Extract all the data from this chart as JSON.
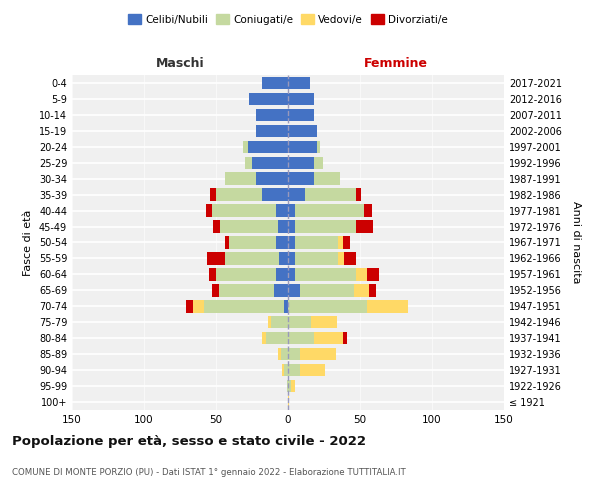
{
  "age_groups": [
    "100+",
    "95-99",
    "90-94",
    "85-89",
    "80-84",
    "75-79",
    "70-74",
    "65-69",
    "60-64",
    "55-59",
    "50-54",
    "45-49",
    "40-44",
    "35-39",
    "30-34",
    "25-29",
    "20-24",
    "15-19",
    "10-14",
    "5-9",
    "0-4"
  ],
  "birth_years": [
    "≤ 1921",
    "1922-1926",
    "1927-1931",
    "1932-1936",
    "1937-1941",
    "1942-1946",
    "1947-1951",
    "1952-1956",
    "1957-1961",
    "1962-1966",
    "1967-1971",
    "1972-1976",
    "1977-1981",
    "1982-1986",
    "1987-1991",
    "1992-1996",
    "1997-2001",
    "2002-2006",
    "2007-2011",
    "2012-2016",
    "2017-2021"
  ],
  "male": {
    "celibi": [
      0,
      0,
      0,
      0,
      0,
      0,
      3,
      10,
      8,
      6,
      8,
      7,
      8,
      18,
      22,
      25,
      28,
      22,
      22,
      27,
      18
    ],
    "coniugati": [
      0,
      1,
      3,
      5,
      15,
      12,
      55,
      38,
      42,
      38,
      33,
      40,
      45,
      32,
      22,
      5,
      3,
      0,
      0,
      0,
      0
    ],
    "vedovi": [
      0,
      0,
      1,
      2,
      3,
      2,
      8,
      0,
      0,
      0,
      0,
      0,
      0,
      0,
      0,
      0,
      0,
      0,
      0,
      0,
      0
    ],
    "divorziati": [
      0,
      0,
      0,
      0,
      0,
      0,
      5,
      5,
      5,
      12,
      3,
      5,
      4,
      4,
      0,
      0,
      0,
      0,
      0,
      0,
      0
    ]
  },
  "female": {
    "nubili": [
      0,
      0,
      0,
      0,
      0,
      0,
      0,
      8,
      5,
      5,
      5,
      5,
      5,
      12,
      18,
      18,
      20,
      20,
      18,
      18,
      15
    ],
    "coniugate": [
      0,
      2,
      8,
      8,
      18,
      16,
      55,
      38,
      42,
      30,
      30,
      42,
      48,
      35,
      18,
      6,
      2,
      0,
      0,
      0,
      0
    ],
    "vedove": [
      1,
      3,
      18,
      25,
      20,
      18,
      28,
      10,
      8,
      4,
      3,
      0,
      0,
      0,
      0,
      0,
      0,
      0,
      0,
      0,
      0
    ],
    "divorziate": [
      0,
      0,
      0,
      0,
      3,
      0,
      0,
      5,
      8,
      8,
      5,
      12,
      5,
      4,
      0,
      0,
      0,
      0,
      0,
      0,
      0
    ]
  },
  "colors": {
    "celibi": "#4472C4",
    "coniugati": "#c5d9a0",
    "vedovi": "#FFD966",
    "divorziati": "#CC0000"
  },
  "xlim": 150,
  "title": "Popolazione per età, sesso e stato civile - 2022",
  "subtitle": "COMUNE DI MONTE PORZIO (PU) - Dati ISTAT 1° gennaio 2022 - Elaborazione TUTTITALIA.IT",
  "ylabel_left": "Fasce di età",
  "ylabel_right": "Anni di nascita",
  "xlabel_left": "Maschi",
  "xlabel_right": "Femmine",
  "xlabel_left_color": "#333333",
  "xlabel_right_color": "#cc0000",
  "bg_color": "#f0f0f0",
  "grid_color": "#ffffff"
}
